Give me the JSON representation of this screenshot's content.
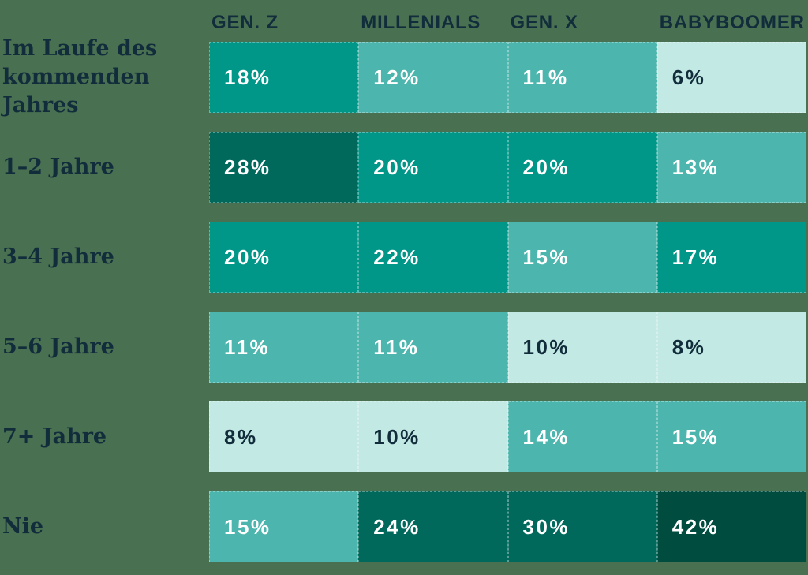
{
  "page": {
    "background": "#4A7052"
  },
  "palette": {
    "darkest": "#004D40",
    "dark": "#00695C",
    "medium": "#009688",
    "light": "#4CB5AD",
    "lightest": "#C3E9E4",
    "text_dark": "#112D3B",
    "text_light": "#FFFFFF"
  },
  "chart_data": {
    "type": "heatmap",
    "title": "",
    "legend": "none",
    "columns": [
      "GEN. Z",
      "MILLENIALS",
      "GEN. X",
      "BABYBOOMER"
    ],
    "row_labels": [
      "Im Laufe des kommenden Jahres",
      "1–2 Jahre",
      "3–4 Jahre",
      "5–6 Jahre",
      "7+ Jahre",
      "Nie"
    ],
    "rows": [
      {
        "label": "Im Laufe des kommenden Jahres",
        "cells": [
          {
            "label": "18%",
            "value": 18,
            "shade": "medium"
          },
          {
            "label": "12%",
            "value": 12,
            "shade": "light"
          },
          {
            "label": "11%",
            "value": 11,
            "shade": "light"
          },
          {
            "label": "6%",
            "value": 6,
            "shade": "lightest"
          }
        ]
      },
      {
        "label": "1–2 Jahre",
        "cells": [
          {
            "label": "28%",
            "value": 28,
            "shade": "dark"
          },
          {
            "label": "20%",
            "value": 20,
            "shade": "medium"
          },
          {
            "label": "20%",
            "value": 20,
            "shade": "medium"
          },
          {
            "label": "13%",
            "value": 13,
            "shade": "light"
          }
        ]
      },
      {
        "label": "3–4 Jahre",
        "cells": [
          {
            "label": "20%",
            "value": 20,
            "shade": "medium"
          },
          {
            "label": "22%",
            "value": 22,
            "shade": "medium"
          },
          {
            "label": "15%",
            "value": 15,
            "shade": "light"
          },
          {
            "label": "17%",
            "value": 17,
            "shade": "medium"
          }
        ]
      },
      {
        "label": "5–6 Jahre",
        "cells": [
          {
            "label": "11%",
            "value": 11,
            "shade": "light"
          },
          {
            "label": "11%",
            "value": 11,
            "shade": "light"
          },
          {
            "label": "10%",
            "value": 10,
            "shade": "lightest"
          },
          {
            "label": "8%",
            "value": 8,
            "shade": "lightest"
          }
        ]
      },
      {
        "label": "7+ Jahre",
        "cells": [
          {
            "label": "8%",
            "value": 8,
            "shade": "lightest"
          },
          {
            "label": "10%",
            "value": 10,
            "shade": "lightest"
          },
          {
            "label": "14%",
            "value": 14,
            "shade": "light"
          },
          {
            "label": "15%",
            "value": 15,
            "shade": "light"
          }
        ]
      },
      {
        "label": "Nie",
        "cells": [
          {
            "label": "15%",
            "value": 15,
            "shade": "light"
          },
          {
            "label": "24%",
            "value": 24,
            "shade": "dark"
          },
          {
            "label": "30%",
            "value": 30,
            "shade": "dark"
          },
          {
            "label": "42%",
            "value": 42,
            "shade": "darkest"
          }
        ]
      }
    ]
  }
}
